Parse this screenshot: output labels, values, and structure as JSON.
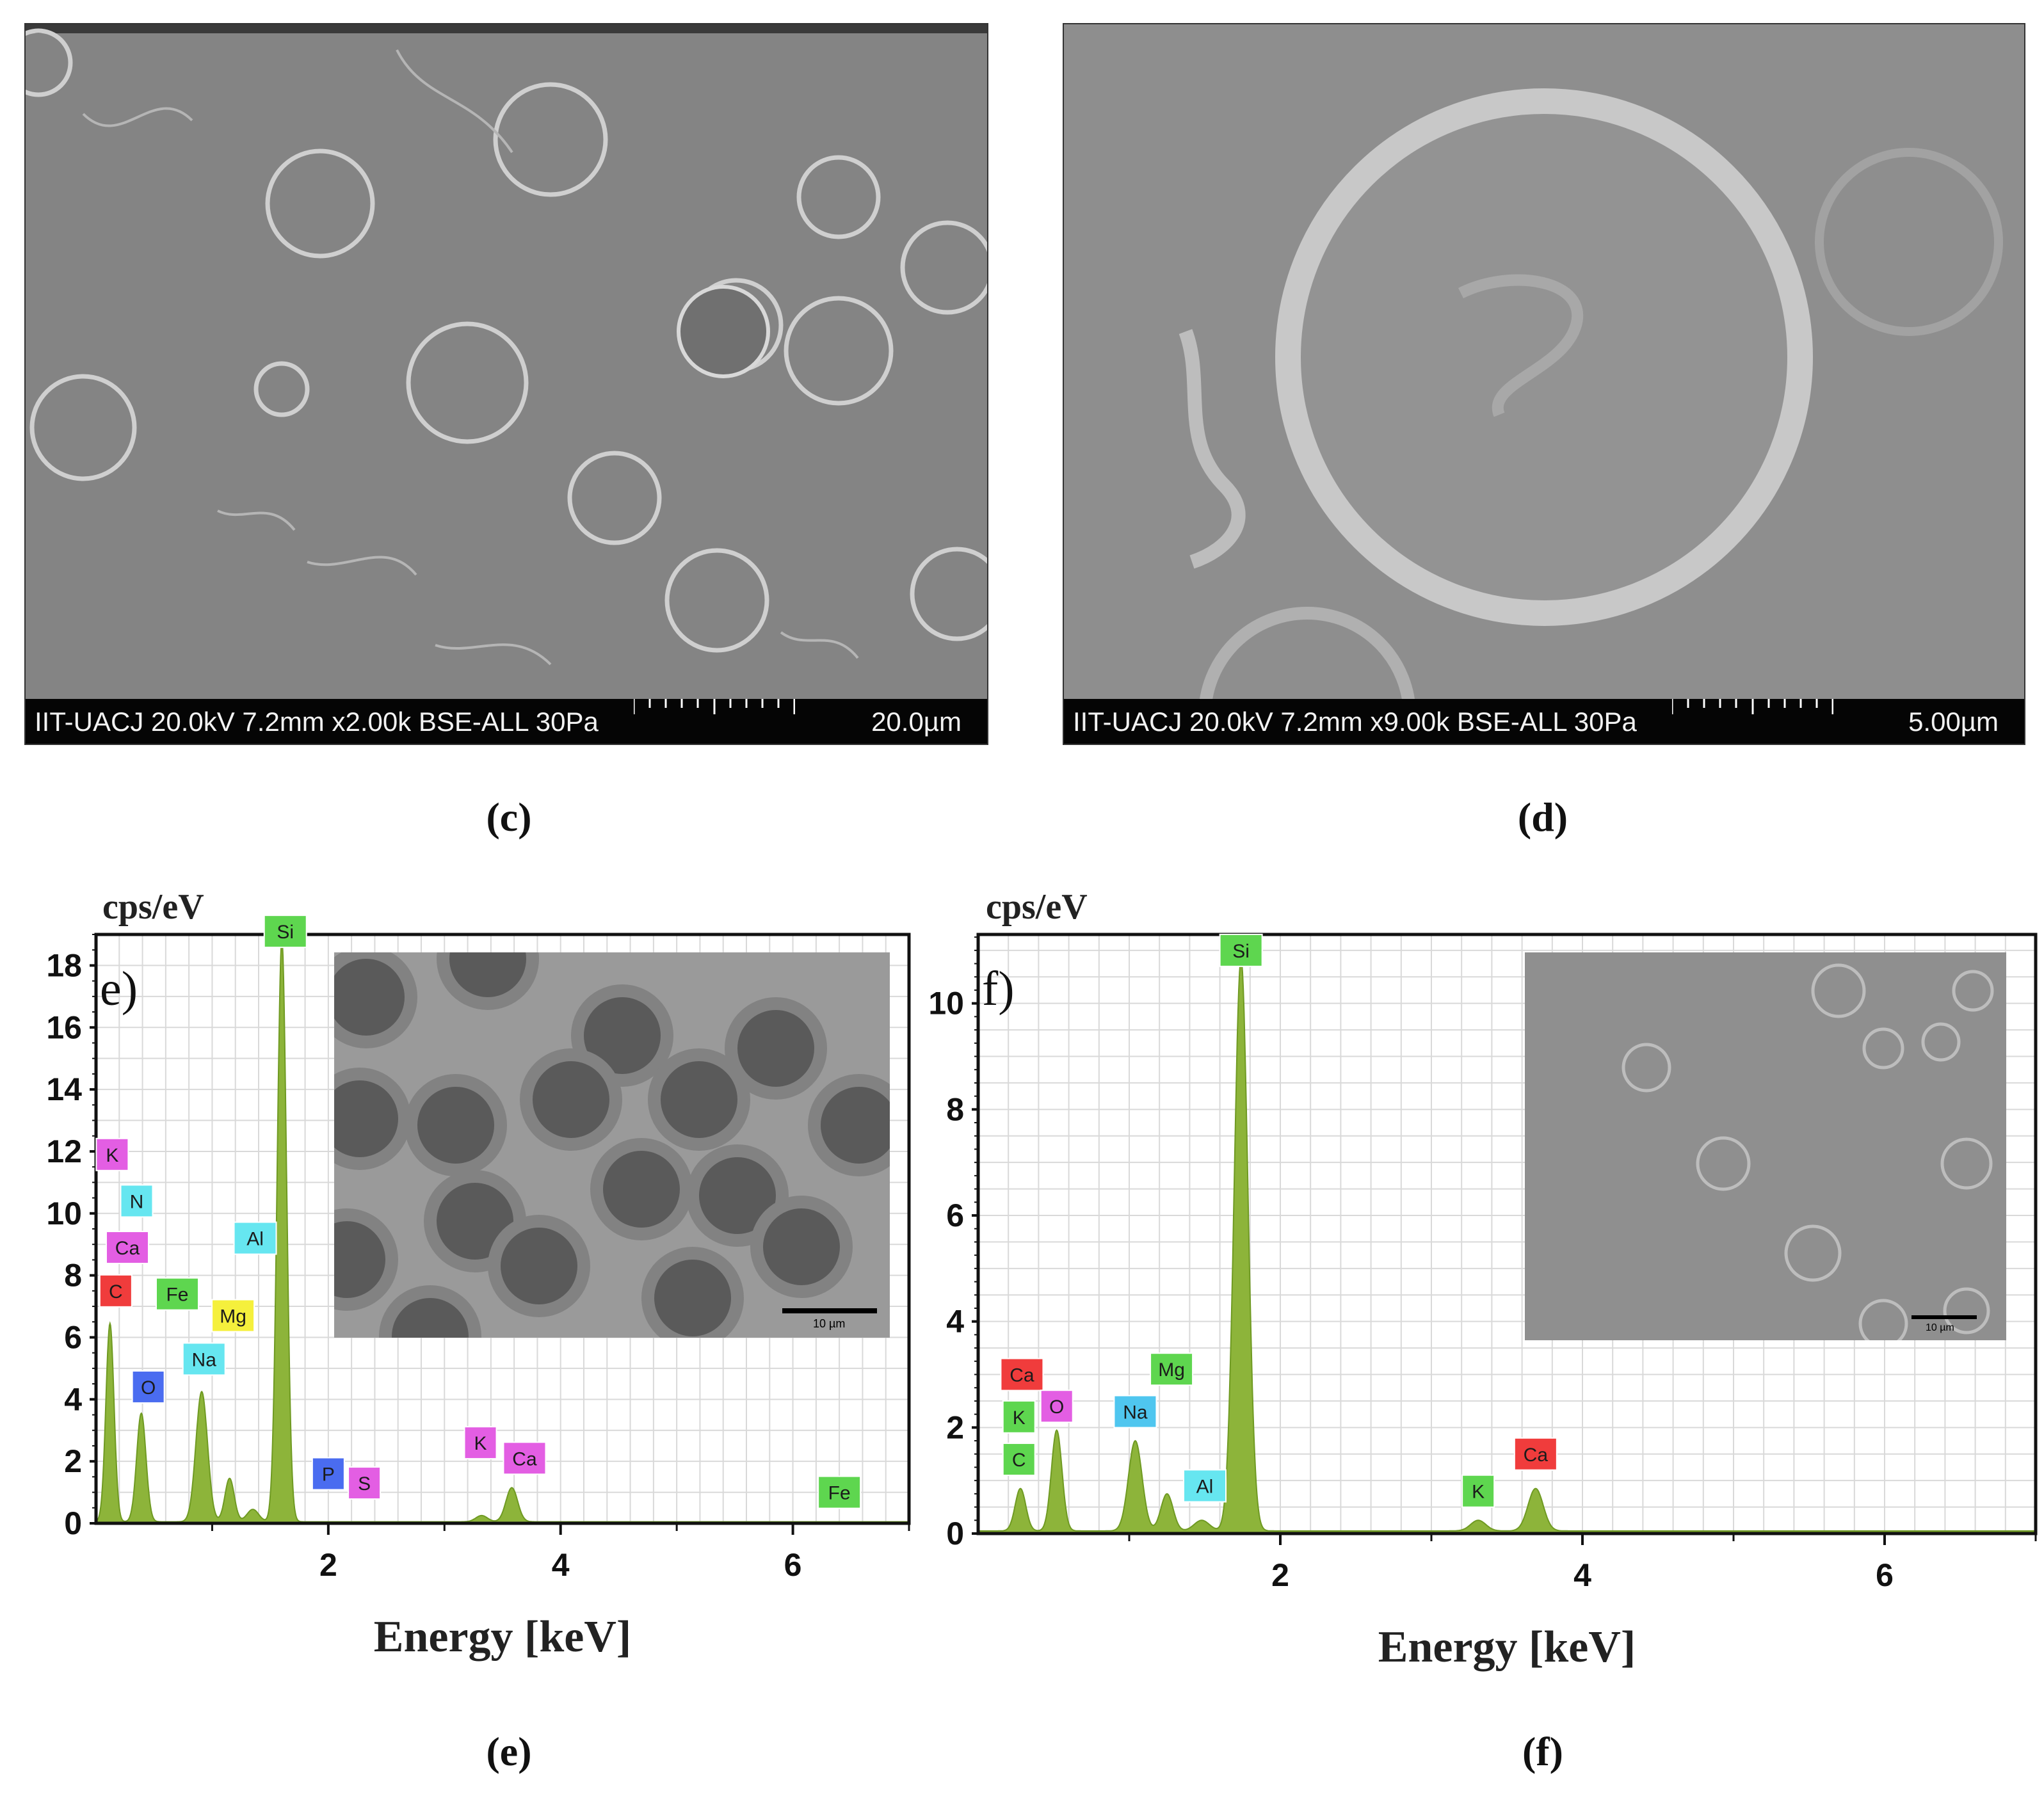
{
  "colors": {
    "spectrum_fill": "#8db43a",
    "grid": "#d9d9d9",
    "tag_magenta": "#e35ee3",
    "tag_cyan": "#66e6f0",
    "tag_red": "#f03c3c",
    "tag_green": "#5ed64f",
    "tag_blue": "#4a6cf0",
    "tag_yellow": "#f5f03c",
    "tag_teal": "#4fc6ef"
  },
  "panels": {
    "c": {
      "caption": "(c)",
      "info": "IIT-UACJ 20.0kV 7.2mm x2.00k BSE-ALL 30Pa",
      "scale": "20.0µm"
    },
    "d": {
      "caption": "(d)",
      "info": "IIT-UACJ 20.0kV 7.2mm x9.00k BSE-ALL 30Pa",
      "scale": "5.00µm"
    },
    "e": {
      "caption": "(e)",
      "letter": "e)",
      "inset_scale": "10 µm"
    },
    "f": {
      "caption": "(f)",
      "letter": "f)",
      "inset_scale": "10 µm"
    }
  },
  "chart_data": [
    {
      "type": "area",
      "panel": "e",
      "ylabel": "cps/eV",
      "xlabel": "Energy [keV]",
      "xlim": [
        0,
        7
      ],
      "ylim": [
        0,
        19
      ],
      "x_ticks": [
        2,
        4,
        6
      ],
      "y_ticks": [
        0,
        2,
        4,
        6,
        8,
        10,
        12,
        14,
        16,
        18
      ],
      "grid": true,
      "peaks": [
        {
          "energy": 0.12,
          "height": 6.4,
          "width": 0.035
        },
        {
          "energy": 0.39,
          "height": 3.5,
          "width": 0.04
        },
        {
          "energy": 0.91,
          "height": 4.2,
          "width": 0.05
        },
        {
          "energy": 1.15,
          "height": 1.4,
          "width": 0.04
        },
        {
          "energy": 1.35,
          "height": 0.4,
          "width": 0.05
        },
        {
          "energy": 1.6,
          "height": 18.8,
          "width": 0.04
        },
        {
          "energy": 3.32,
          "height": 0.2,
          "width": 0.05
        },
        {
          "energy": 3.58,
          "height": 1.1,
          "width": 0.05
        }
      ],
      "element_tags": [
        {
          "label": "K",
          "color": "tag_magenta",
          "energy": 0.14,
          "y": 11.9
        },
        {
          "label": "N",
          "color": "tag_cyan",
          "energy": 0.35,
          "y": 10.4
        },
        {
          "label": "Ca",
          "color": "tag_magenta",
          "energy": 0.27,
          "y": 8.9
        },
        {
          "label": "C",
          "color": "tag_red",
          "energy": 0.17,
          "y": 7.5
        },
        {
          "label": "Fe",
          "color": "tag_green",
          "energy": 0.7,
          "y": 7.4
        },
        {
          "label": "Al",
          "color": "tag_cyan",
          "energy": 1.37,
          "y": 9.2
        },
        {
          "label": "Mg",
          "color": "tag_yellow",
          "energy": 1.18,
          "y": 6.7
        },
        {
          "label": "Na",
          "color": "tag_cyan",
          "energy": 0.93,
          "y": 5.3
        },
        {
          "label": "O",
          "color": "tag_blue",
          "energy": 0.45,
          "y": 4.4
        },
        {
          "label": "Si",
          "color": "tag_green",
          "energy": 1.63,
          "y": 19.1
        },
        {
          "label": "P",
          "color": "tag_blue",
          "energy": 2.0,
          "y": 1.6
        },
        {
          "label": "S",
          "color": "tag_magenta",
          "energy": 2.31,
          "y": 1.3
        },
        {
          "label": "K",
          "color": "tag_magenta",
          "energy": 3.31,
          "y": 2.6
        },
        {
          "label": "Ca",
          "color": "tag_magenta",
          "energy": 3.69,
          "y": 2.1
        },
        {
          "label": "Fe",
          "color": "tag_green",
          "energy": 6.4,
          "y": 1.0
        }
      ]
    },
    {
      "type": "area",
      "panel": "f",
      "ylabel": "cps/eV",
      "xlabel": "Energy [keV]",
      "xlim": [
        0,
        7
      ],
      "ylim": [
        0,
        11.3
      ],
      "x_ticks": [
        2,
        4,
        6
      ],
      "y_ticks": [
        0,
        2,
        4,
        6,
        8,
        10
      ],
      "grid": true,
      "peaks": [
        {
          "energy": 0.28,
          "height": 0.8,
          "width": 0.035
        },
        {
          "energy": 0.52,
          "height": 1.9,
          "width": 0.035
        },
        {
          "energy": 1.04,
          "height": 1.7,
          "width": 0.045
        },
        {
          "energy": 1.25,
          "height": 0.7,
          "width": 0.04
        },
        {
          "energy": 1.48,
          "height": 0.2,
          "width": 0.05
        },
        {
          "energy": 1.74,
          "height": 10.8,
          "width": 0.045
        },
        {
          "energy": 3.31,
          "height": 0.2,
          "width": 0.05
        },
        {
          "energy": 3.69,
          "height": 0.8,
          "width": 0.05
        }
      ],
      "element_tags": [
        {
          "label": "Ca",
          "color": "tag_red",
          "energy": 0.29,
          "y": 3.0
        },
        {
          "label": "K",
          "color": "tag_green",
          "energy": 0.27,
          "y": 2.2
        },
        {
          "label": "C",
          "color": "tag_green",
          "energy": 0.27,
          "y": 1.4
        },
        {
          "label": "O",
          "color": "tag_magenta",
          "energy": 0.52,
          "y": 2.4
        },
        {
          "label": "Mg",
          "color": "tag_green",
          "energy": 1.28,
          "y": 3.1
        },
        {
          "label": "Na",
          "color": "tag_teal",
          "energy": 1.04,
          "y": 2.3
        },
        {
          "label": "Al",
          "color": "tag_cyan",
          "energy": 1.5,
          "y": 0.9
        },
        {
          "label": "Si",
          "color": "tag_green",
          "energy": 1.74,
          "y": 11.0
        },
        {
          "label": "K",
          "color": "tag_green",
          "energy": 3.31,
          "y": 0.8
        },
        {
          "label": "Ca",
          "color": "tag_red",
          "energy": 3.69,
          "y": 1.5
        }
      ]
    }
  ]
}
